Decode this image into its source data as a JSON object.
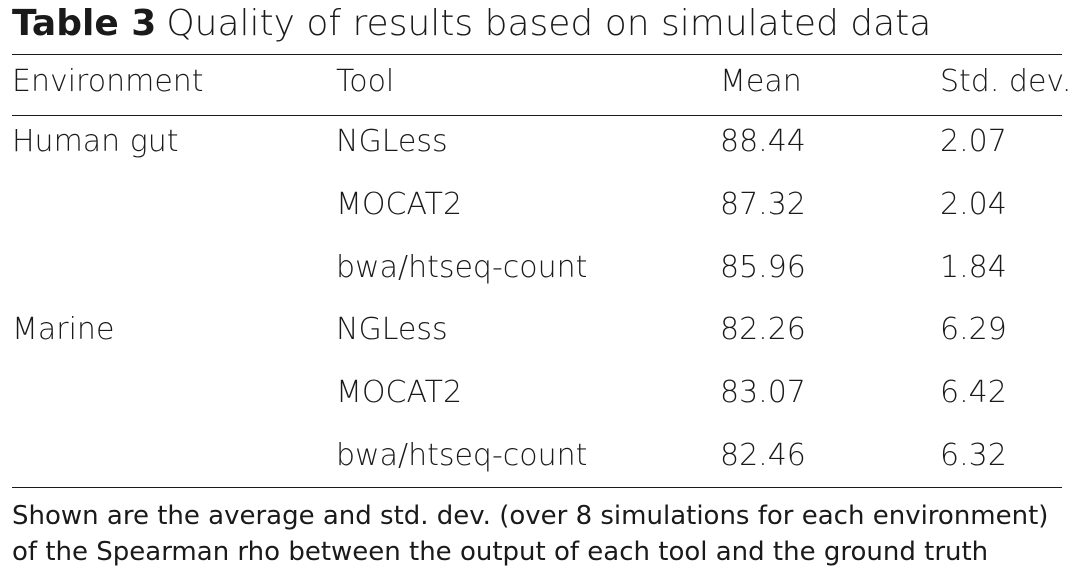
{
  "table": {
    "label": "Table 3",
    "caption": "Quality of results based on simulated data",
    "headers": {
      "environment": "Environment",
      "tool": "Tool",
      "mean": "Mean",
      "std": "Std. dev."
    },
    "rows": [
      {
        "environment": "Human gut",
        "tool": "NGLess",
        "mean": "88.44",
        "std": "2.07"
      },
      {
        "environment": "",
        "tool": "MOCAT2",
        "mean": "87.32",
        "std": "2.04"
      },
      {
        "environment": "",
        "tool": "bwa/htseq-count",
        "mean": "85.96",
        "std": "1.84"
      },
      {
        "environment": "Marine",
        "tool": "NGLess",
        "mean": "82.26",
        "std": "6.29"
      },
      {
        "environment": "",
        "tool": "MOCAT2",
        "mean": "83.07",
        "std": "6.42"
      },
      {
        "environment": "",
        "tool": "bwa/htseq-count",
        "mean": "82.46",
        "std": "6.32"
      }
    ],
    "footnote": "Shown are the average and std. dev. (over 8 simulations for each environment) of the Spearman rho between the output of each tool and the ground truth"
  }
}
